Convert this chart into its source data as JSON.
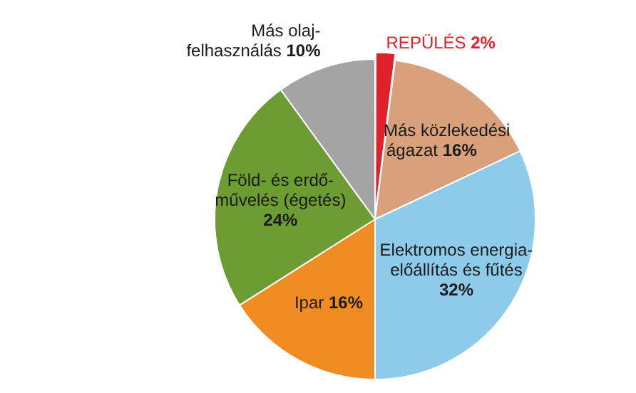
{
  "chart_data": {
    "type": "pie",
    "categories": [
      "REPÜLÉS",
      "Más közlekedési ágazat",
      "Elektromos energia-előállítás és fűtés",
      "Ipar",
      "Föld- és erdő-művelés (égetés)",
      "Más olaj-felhasználás"
    ],
    "values": [
      2,
      16,
      32,
      16,
      24,
      10
    ],
    "value_labels": [
      "2%",
      "16%",
      "32%",
      "16%",
      "24%",
      "10%"
    ],
    "colors": [
      "#e0202a",
      "#d9a07c",
      "#8ecbea",
      "#f08c22",
      "#6c9c32",
      "#a4a4a4"
    ],
    "legend": false
  }
}
